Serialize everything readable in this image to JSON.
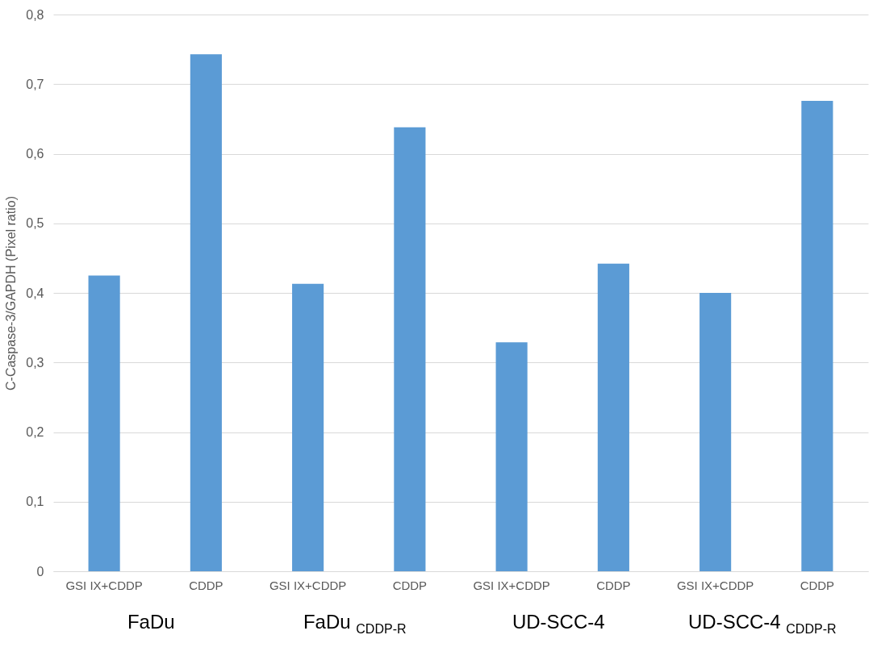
{
  "chart_data": {
    "type": "bar",
    "ylabel": "C-Caspase-3/GAPDH (Pixel ratio)",
    "categories": [
      "GSI IX+CDDP",
      "CDDP",
      "GSI IX+CDDP",
      "CDDP",
      "GSI IX+CDDP",
      "CDDP",
      "GSI IX+CDDP",
      "CDDP"
    ],
    "values": [
      0.425,
      0.743,
      0.413,
      0.638,
      0.329,
      0.442,
      0.4,
      0.676
    ],
    "color": "#5b9bd5",
    "ylim": [
      0,
      0.8
    ],
    "yticks": [
      {
        "value": 0,
        "label": "0"
      },
      {
        "value": 0.1,
        "label": "0,1"
      },
      {
        "value": 0.2,
        "label": "0,2"
      },
      {
        "value": 0.3,
        "label": "0,3"
      },
      {
        "value": 0.4,
        "label": "0,4"
      },
      {
        "value": 0.5,
        "label": "0,5"
      },
      {
        "value": 0.6,
        "label": "0,6"
      },
      {
        "value": 0.7,
        "label": "0,7"
      },
      {
        "value": 0.8,
        "label": "0,8"
      }
    ],
    "grid": "y",
    "annotations": [
      "FaDu",
      "FaDu $_{CDDP-R}$",
      "UD-SCC-4",
      "UD-SCC-4 $_{CDDP-R}$"
    ]
  }
}
